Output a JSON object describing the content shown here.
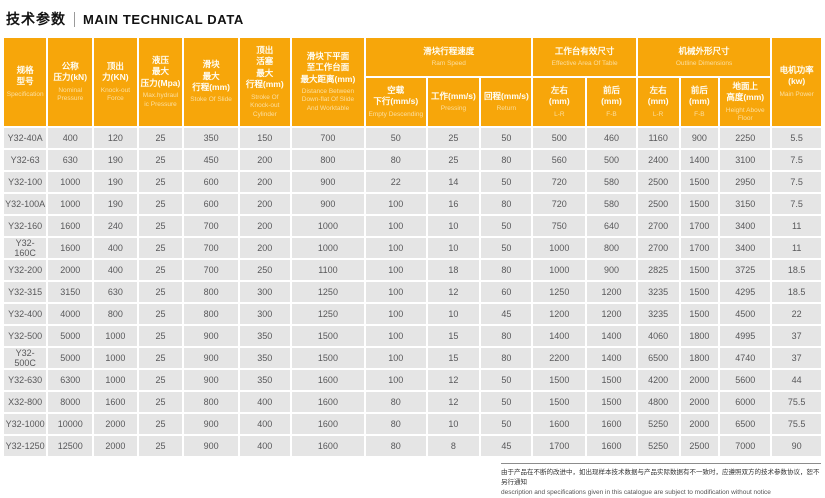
{
  "page": {
    "title_cn": "技术参数",
    "title_en": "MAIN TECHNICAL DATA"
  },
  "colors": {
    "header_orange": "#F7A60A",
    "cell_gray": "#E5E5E5",
    "cell_text": "#58585A"
  },
  "table": {
    "headers": {
      "spec": {
        "cn": "规格\n型号",
        "en": "Specification"
      },
      "nominal": {
        "cn": "公称\n压力(kN)",
        "en": "Nominal\nPressure"
      },
      "knockout": {
        "cn": "顶出\n力(KN)",
        "en": "Knock-out\nForce"
      },
      "max_hydraulic": {
        "cn": "液压\n最大\n压力(Mpa)",
        "en": "Max.hydraul\nic Pressure"
      },
      "stroke_slide": {
        "cn": "滑块\n最大\n行程(mm)",
        "en": "Stoke Of Slide"
      },
      "stroke_knockout": {
        "cn": "顶出\n活塞\n最大\n行程(mm)",
        "en": "Stroke Of\nKnock-out\nCylinder"
      },
      "distance": {
        "cn": "滑块下平面\n至工作台面\n最大距离(mm)",
        "en": "Distance Between\nDown-flat Of Slide\nAnd Worktable"
      },
      "ram_speed": {
        "cn": "滑块行程速度",
        "en": "Ram Speed"
      },
      "empty_descending": {
        "cn": "空载\n下行(mm/s)",
        "en": "Empty Descending"
      },
      "pressing": {
        "cn": "工作(mm/s)",
        "en": "Pressing"
      },
      "return": {
        "cn": "回程(mm/s)",
        "en": "Return"
      },
      "table_size": {
        "cn": "工作台有效尺寸",
        "en": "Effective Area Of Table"
      },
      "table_lr": {
        "cn": "左右\n(mm)",
        "en": "L-R"
      },
      "table_fb": {
        "cn": "前后\n(mm)",
        "en": "F-B"
      },
      "outline": {
        "cn": "机械外形尺寸",
        "en": "Outline Dimensions"
      },
      "outline_lr": {
        "cn": "左右\n(mm)",
        "en": "L-R"
      },
      "outline_fb": {
        "cn": "前后\n(mm)",
        "en": "F-B"
      },
      "height": {
        "cn": "地面上\n高度(mm)",
        "en": "Height Above Floor"
      },
      "power": {
        "cn": "电机功率(kw)",
        "en": "Main Power"
      }
    },
    "rows": [
      [
        "Y32-40A",
        "400",
        "120",
        "25",
        "350",
        "150",
        "700",
        "50",
        "25",
        "50",
        "500",
        "460",
        "1160",
        "900",
        "2250",
        "5.5"
      ],
      [
        "Y32-63",
        "630",
        "190",
        "25",
        "450",
        "200",
        "800",
        "80",
        "25",
        "80",
        "560",
        "500",
        "2400",
        "1400",
        "3100",
        "7.5"
      ],
      [
        "Y32-100",
        "1000",
        "190",
        "25",
        "600",
        "200",
        "900",
        "22",
        "14",
        "50",
        "720",
        "580",
        "2500",
        "1500",
        "2950",
        "7.5"
      ],
      [
        "Y32-100A",
        "1000",
        "190",
        "25",
        "600",
        "200",
        "900",
        "100",
        "16",
        "80",
        "720",
        "580",
        "2500",
        "1500",
        "3150",
        "7.5"
      ],
      [
        "Y32-160",
        "1600",
        "240",
        "25",
        "700",
        "200",
        "1000",
        "100",
        "10",
        "50",
        "750",
        "640",
        "2700",
        "1700",
        "3400",
        "11"
      ],
      [
        "Y32-160C",
        "1600",
        "400",
        "25",
        "700",
        "200",
        "1000",
        "100",
        "10",
        "50",
        "1000",
        "800",
        "2700",
        "1700",
        "3400",
        "11"
      ],
      [
        "Y32-200",
        "2000",
        "400",
        "25",
        "700",
        "250",
        "1100",
        "100",
        "18",
        "80",
        "1000",
        "900",
        "2825",
        "1500",
        "3725",
        "18.5"
      ],
      [
        "Y32-315",
        "3150",
        "630",
        "25",
        "800",
        "300",
        "1250",
        "100",
        "12",
        "60",
        "1250",
        "1200",
        "3235",
        "1500",
        "4295",
        "18.5"
      ],
      [
        "Y32-400",
        "4000",
        "800",
        "25",
        "800",
        "300",
        "1250",
        "100",
        "10",
        "45",
        "1200",
        "1200",
        "3235",
        "1500",
        "4500",
        "22"
      ],
      [
        "Y32-500",
        "5000",
        "1000",
        "25",
        "900",
        "350",
        "1500",
        "100",
        "15",
        "80",
        "1400",
        "1400",
        "4060",
        "1800",
        "4995",
        "37"
      ],
      [
        "Y32-500C",
        "5000",
        "1000",
        "25",
        "900",
        "350",
        "1500",
        "100",
        "15",
        "80",
        "2200",
        "1400",
        "6500",
        "1800",
        "4740",
        "37"
      ],
      [
        "Y32-630",
        "6300",
        "1000",
        "25",
        "900",
        "350",
        "1600",
        "100",
        "12",
        "50",
        "1500",
        "1500",
        "4200",
        "2000",
        "5600",
        "44"
      ],
      [
        "X32-800",
        "8000",
        "1600",
        "25",
        "800",
        "400",
        "1600",
        "80",
        "12",
        "50",
        "1500",
        "1500",
        "4800",
        "2000",
        "6000",
        "75.5"
      ],
      [
        "Y32-1000",
        "10000",
        "2000",
        "25",
        "900",
        "400",
        "1600",
        "80",
        "10",
        "50",
        "1600",
        "1600",
        "5250",
        "2000",
        "6500",
        "75.5"
      ],
      [
        "Y32-1250",
        "12500",
        "2000",
        "25",
        "900",
        "400",
        "1600",
        "80",
        "8",
        "45",
        "1700",
        "1600",
        "5250",
        "2500",
        "7000",
        "90"
      ]
    ]
  },
  "footer": {
    "cn": "由于产品在不断的改进中，如出现样本技术数据与产品实际数据有不一致时，应遵照双方的技术参数协议，恕不另行通知",
    "en": "description and specifications given in this catalogue are subject to modification without notice"
  }
}
